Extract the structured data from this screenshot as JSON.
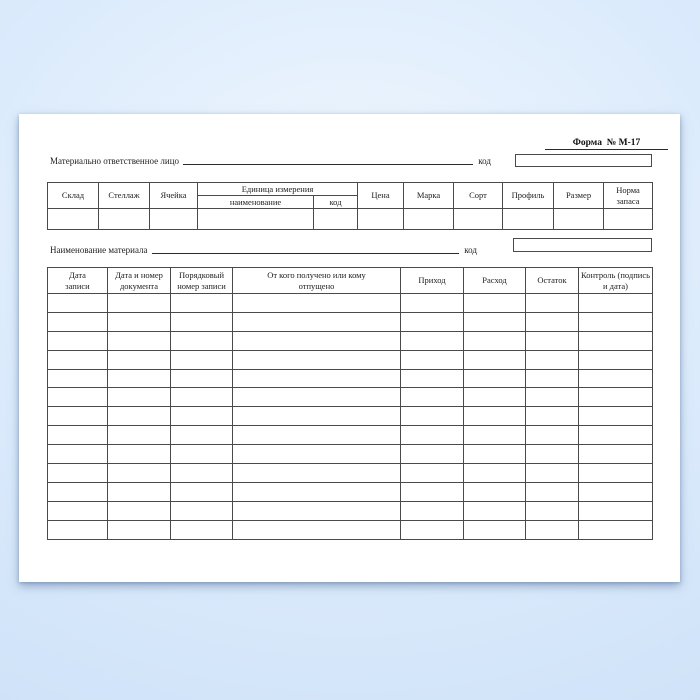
{
  "colors": {
    "background_center": "#f0f7fe",
    "background_edge": "#c6dcf5",
    "paper": "#ffffff",
    "table_line": "#4a4a4a",
    "text": "#1d1d1d"
  },
  "form": {
    "title": "Форма  № М-17",
    "responsible_person": {
      "label": "Материально ответственное лицо",
      "code_label": "код"
    },
    "material_name": {
      "label": "Наименование материала",
      "code_label": "код"
    }
  },
  "storage_table": {
    "headers": [
      "Склад",
      "Стеллаж",
      "Ячейка",
      "Цена",
      "Марка",
      "Сорт",
      "Профиль",
      "Размер",
      "Норма запаса"
    ],
    "unit_group_label": "Единица измерения",
    "unit_sub_headers": [
      "наименование",
      "код"
    ],
    "empty_rows": 1,
    "columns_count": 11
  },
  "records_table": {
    "headers": [
      "Дата записи",
      "Дата и номер документа",
      "Порядковый номер записи",
      "От кого получено или кому отпущено",
      "Приход",
      "Расход",
      "Остаток",
      "Контроль (подпись и дата)"
    ],
    "empty_rows": 13,
    "columns_count": 8
  }
}
